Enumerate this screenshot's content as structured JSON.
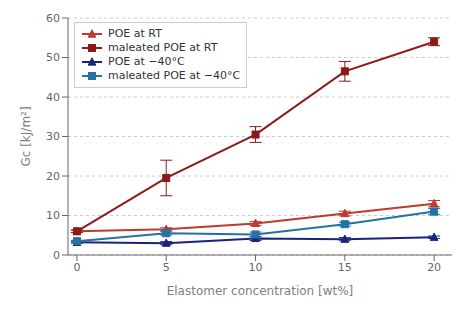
{
  "chart_data": {
    "type": "line",
    "x": [
      0,
      5,
      10,
      15,
      20
    ],
    "series": [
      {
        "name": "POE at RT",
        "color": "#C0392B",
        "marker": "triangle",
        "values": [
          6.0,
          6.5,
          8.0,
          10.5,
          13.0
        ],
        "yerr": [
          0.3,
          0.4,
          0.5,
          0.6,
          0.8
        ]
      },
      {
        "name": "maleated POE at RT",
        "color": "#8B1A1A",
        "marker": "square",
        "values": [
          6.0,
          19.5,
          30.5,
          46.5,
          54.0
        ],
        "yerr": [
          0.3,
          4.5,
          2.0,
          2.5,
          1.0
        ]
      },
      {
        "name": "POE at −40°C",
        "color": "#1A237E",
        "marker": "triangle",
        "values": [
          3.2,
          3.0,
          4.2,
          4.0,
          4.5
        ],
        "yerr": [
          0.2,
          0.4,
          0.5,
          0.4,
          0.3
        ]
      },
      {
        "name": "maleated POE at −40°C",
        "color": "#2471A3",
        "marker": "square",
        "values": [
          3.5,
          5.5,
          5.2,
          7.8,
          11.0
        ],
        "yerr": [
          0.2,
          0.5,
          0.6,
          0.5,
          0.8
        ]
      }
    ],
    "xlabel": "Elastomer concentration [wt%]",
    "ylabel": "Gc [kJ/m²]",
    "xlim": [
      -0.5,
      21
    ],
    "ylim": [
      0,
      60
    ],
    "xticks": [
      0,
      5,
      10,
      15,
      20
    ],
    "yticks": [
      0,
      10,
      20,
      30,
      40,
      50,
      60
    ],
    "grid": true,
    "legend": "upper left"
  }
}
